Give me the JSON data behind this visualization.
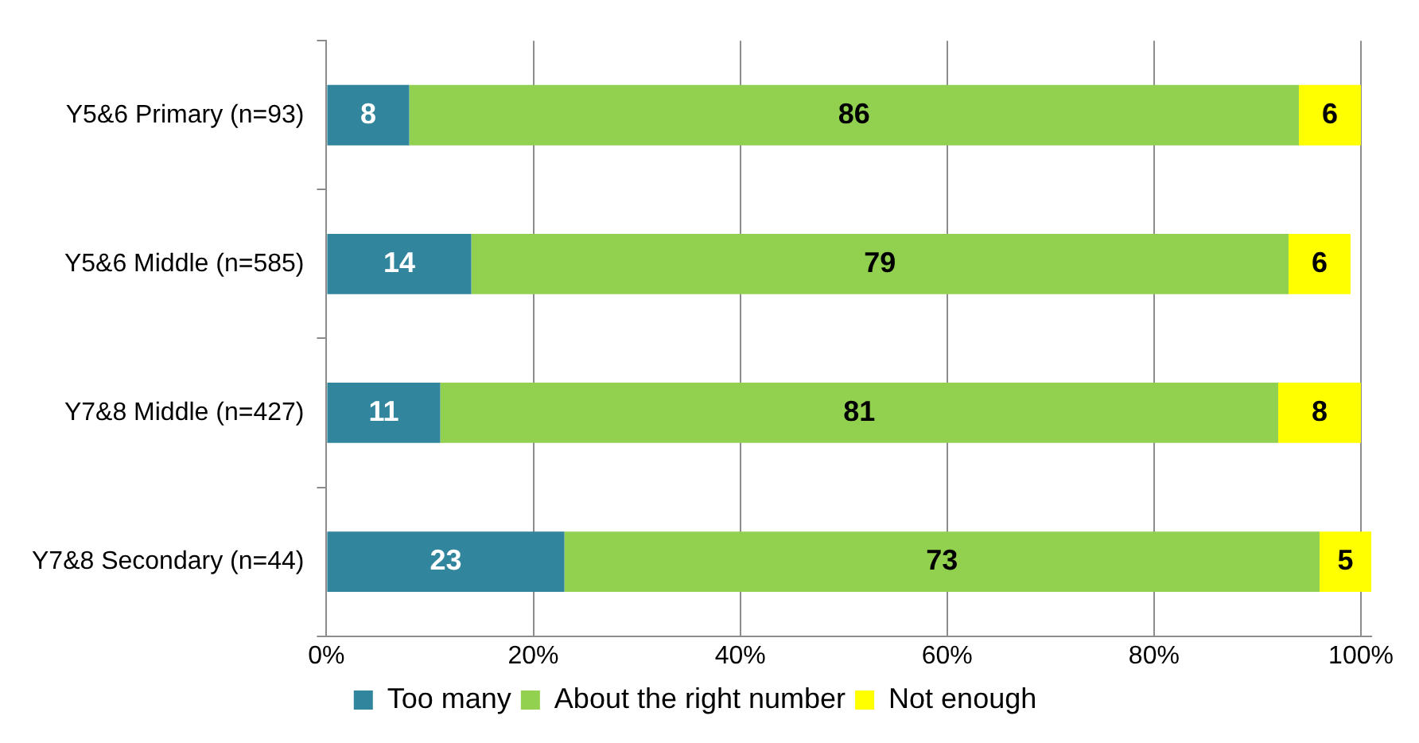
{
  "chart_data": {
    "type": "bar",
    "orientation": "horizontal",
    "stacked": true,
    "categories": [
      "Y5&6 Primary (n=93)",
      "Y5&6 Middle (n=585)",
      "Y7&8 Middle (n=427)",
      "Y7&8 Secondary (n=44)"
    ],
    "series": [
      {
        "name": "Too many",
        "color": "#31859c",
        "values": [
          8,
          14,
          11,
          23
        ]
      },
      {
        "name": "About the right number",
        "color": "#92d050",
        "values": [
          86,
          79,
          81,
          73
        ]
      },
      {
        "name": "Not enough",
        "color": "#ffff00",
        "values": [
          6,
          6,
          8,
          5
        ]
      }
    ],
    "xlim": [
      0,
      101
    ],
    "xticks": [
      {
        "value": 0,
        "label": "0%"
      },
      {
        "value": 20,
        "label": "20%"
      },
      {
        "value": 40,
        "label": "40%"
      },
      {
        "value": 60,
        "label": "60%"
      },
      {
        "value": 80,
        "label": "80%"
      },
      {
        "value": 100,
        "label": "100%"
      }
    ],
    "grid": "x",
    "legend": "bottom",
    "data_labels": true
  }
}
